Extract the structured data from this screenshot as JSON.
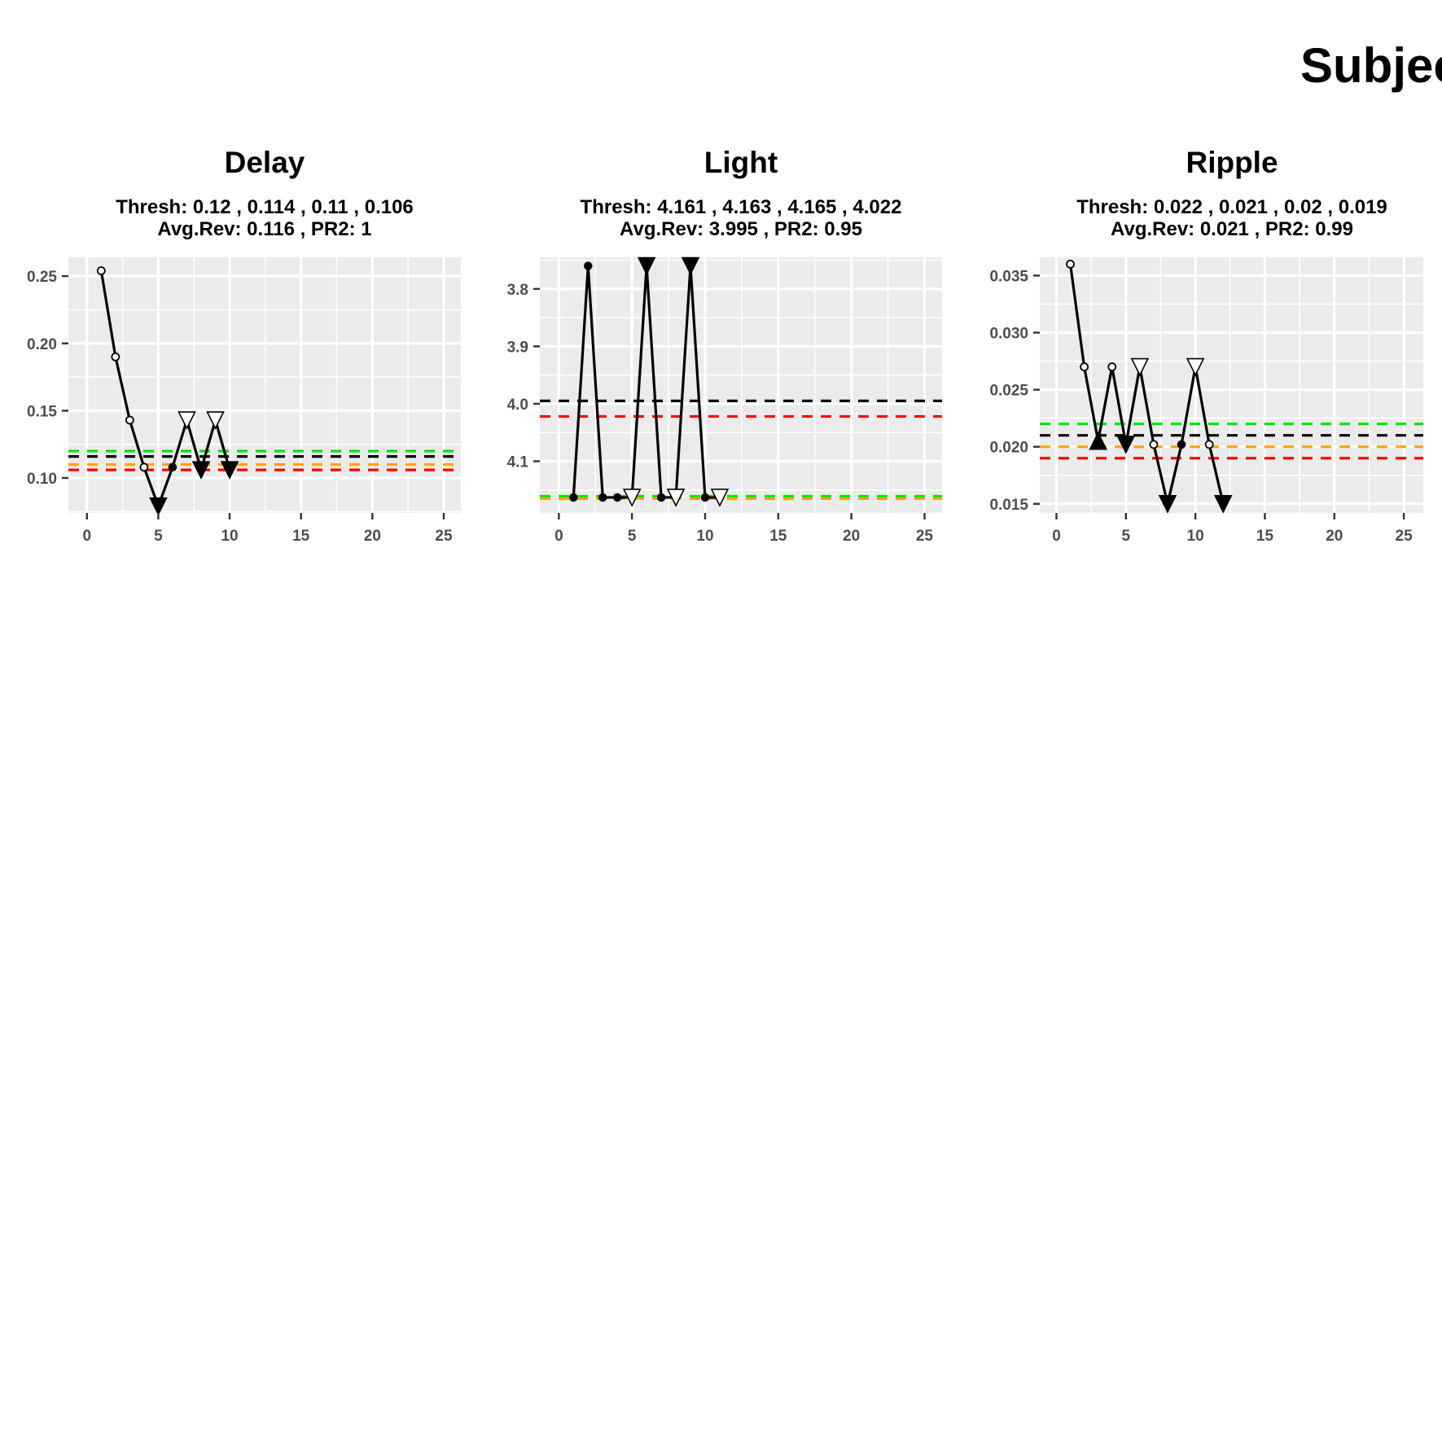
{
  "page": {
    "title": "Subjec"
  },
  "chart_data": [
    {
      "type": "line",
      "title": "Delay",
      "subtitle_line1": "Thresh: 0.12 , 0.114 , 0.11 , 0.106",
      "subtitle_line2": "Avg.Rev: 0.116 , PR2: 1",
      "xlim": [
        -1.3,
        26.2
      ],
      "ylim": [
        0.074,
        0.264
      ],
      "reverse_y": false,
      "x_ticks": [
        0,
        5,
        10,
        15,
        20,
        25
      ],
      "x_tick_labels": [
        "0",
        "5",
        "10",
        "15",
        "20",
        "25"
      ],
      "y_ticks": [
        0.1,
        0.15,
        0.2,
        0.25
      ],
      "y_tick_labels": [
        "0.10",
        "0.15",
        "0.20",
        "0.25"
      ],
      "hlines": [
        {
          "y": 0.12,
          "color": "#00e600"
        },
        {
          "y": 0.116,
          "color": "#000000"
        },
        {
          "y": 0.11,
          "color": "#ffa500"
        },
        {
          "y": 0.106,
          "color": "#ff0000"
        }
      ],
      "x": [
        1,
        2,
        3,
        4,
        5,
        6,
        7,
        8,
        9,
        10
      ],
      "y": [
        0.254,
        0.19,
        0.143,
        0.108,
        0.079,
        0.108,
        0.143,
        0.106,
        0.143,
        0.106
      ],
      "markers": [
        "circle-open",
        "circle-open",
        "circle-open",
        "circle-open",
        "triangle-down-filled",
        "circle-filled",
        "triangle-down-open",
        "triangle-down-filled",
        "triangle-down-open",
        "triangle-down-filled"
      ]
    },
    {
      "type": "line",
      "title": "Light",
      "subtitle_line1": "Thresh: 4.161 , 4.163 , 4.165 , 4.022",
      "subtitle_line2": "Avg.Rev: 3.995 , PR2: 0.95",
      "xlim": [
        -1.3,
        26.2
      ],
      "ylim": [
        3.745,
        4.19
      ],
      "reverse_y": true,
      "x_ticks": [
        0,
        5,
        10,
        15,
        20,
        25
      ],
      "x_tick_labels": [
        "0",
        "5",
        "10",
        "15",
        "20",
        "25"
      ],
      "y_ticks": [
        3.8,
        3.9,
        4.0,
        4.1
      ],
      "y_tick_labels": [
        "3.8",
        "3.9",
        "4.0",
        "4.1"
      ],
      "hlines": [
        {
          "y": 4.161,
          "color": "#00e600"
        },
        {
          "y": 3.995,
          "color": "#000000"
        },
        {
          "y": 4.165,
          "color": "#ffa500"
        },
        {
          "y": 4.022,
          "color": "#ff0000"
        }
      ],
      "x": [
        1,
        2,
        3,
        4,
        5,
        6,
        7,
        8,
        9,
        10,
        11
      ],
      "y": [
        4.163,
        3.76,
        4.163,
        4.163,
        4.163,
        3.76,
        4.163,
        4.163,
        3.76,
        4.163,
        4.163
      ],
      "markers": [
        "circle-filled",
        "circle-filled",
        "circle-filled",
        "circle-filled",
        "triangle-down-open",
        "triangle-down-filled",
        "circle-filled",
        "triangle-down-open",
        "triangle-down-filled",
        "circle-filled",
        "triangle-down-open"
      ]
    },
    {
      "type": "line",
      "title": "Ripple",
      "subtitle_line1": "Thresh: 0.022 , 0.021 , 0.02 , 0.019",
      "subtitle_line2": "Avg.Rev: 0.021 , PR2: 0.99",
      "xlim": [
        -1.2,
        26.4
      ],
      "ylim": [
        0.0142,
        0.0366
      ],
      "reverse_y": false,
      "x_ticks": [
        0,
        5,
        10,
        15,
        20,
        25
      ],
      "x_tick_labels": [
        "0",
        "5",
        "10",
        "15",
        "20",
        "25"
      ],
      "y_ticks": [
        0.015,
        0.02,
        0.025,
        0.03,
        0.035
      ],
      "y_tick_labels": [
        "0.015",
        "0.020",
        "0.025",
        "0.030",
        "0.035"
      ],
      "hlines": [
        {
          "y": 0.022,
          "color": "#00e600"
        },
        {
          "y": 0.021,
          "color": "#000000"
        },
        {
          "y": 0.02,
          "color": "#ffa500"
        },
        {
          "y": 0.019,
          "color": "#ff0000"
        }
      ],
      "x": [
        1,
        2,
        3,
        4,
        5,
        6,
        7,
        8,
        9,
        10,
        11,
        12
      ],
      "y": [
        0.036,
        0.027,
        0.0205,
        0.027,
        0.0202,
        0.027,
        0.0202,
        0.015,
        0.0202,
        0.027,
        0.0202,
        0.015
      ],
      "markers": [
        "circle-open",
        "circle-open",
        "triangle-up-filled",
        "circle-open",
        "triangle-down-filled",
        "triangle-down-open",
        "circle-open",
        "triangle-down-filled",
        "circle-filled",
        "triangle-down-open",
        "circle-open",
        "triangle-down-filled"
      ]
    }
  ]
}
